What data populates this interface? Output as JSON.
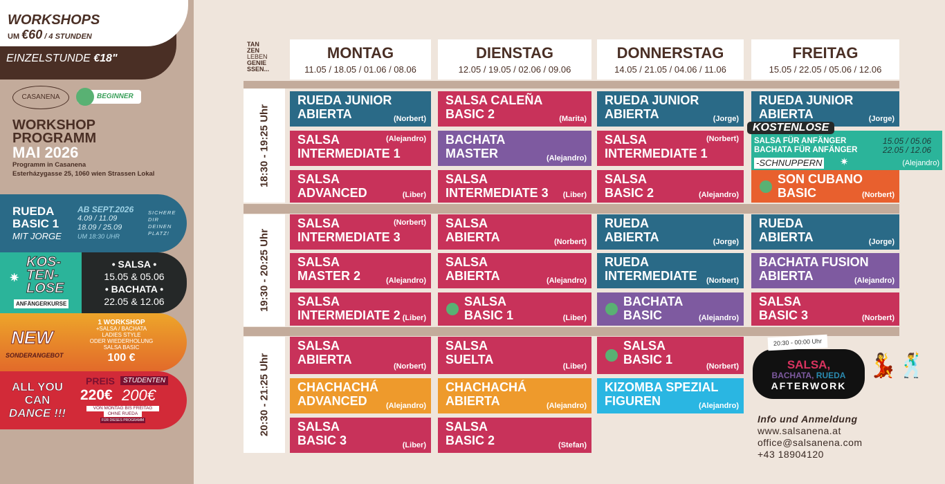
{
  "colors": {
    "blue": "#2a6a87",
    "crimson": "#c8325a",
    "purple": "#7e5aa0",
    "orange": "#ee9a2c",
    "cyan": "#2ab6e2",
    "red_orange": "#e8602e",
    "green_teal": "#2bb49a",
    "brown": "#4a2f25",
    "beginner_green": "#59b173"
  },
  "left": {
    "workshops": "WORKSHOPS",
    "um": "UM",
    "price": "€60",
    "per": "/ 4 STUNDEN",
    "einzel": "EINZELSTUNDE",
    "einzel_price": "€18\"",
    "logo": "CASANENA",
    "beginner": "BEGINNER",
    "prog1": "WORKSHOP",
    "prog2": "PROGRAMM",
    "prog3": "MAI 2026",
    "addr1": "Programm in Casanena",
    "addr2": "Esterházygasse 25, 1060 wien Strassen Lokal",
    "rueda": {
      "l1": "RUEDA",
      "l2": "BASIC 1",
      "l3": "MIT JORGE",
      "ab": "AB SEPT.2026",
      "d1": "4.09 / 11.09",
      "d2": "18.09 / 25.09",
      "time": "UM 18:30 UHR",
      "cta1": "SICHERE",
      "cta2": "DIR",
      "cta3": "DEINEN",
      "cta4": "PLATZ!"
    },
    "kost": {
      "k1": "KOS-",
      "k2": "TEN-",
      "k3": "LOSE",
      "sub": "ANFÄNGERKURSE",
      "s1": "• SALSA •",
      "s2": "15.05 & 05.06",
      "s3": "• BACHATA •",
      "s4": "22.05 & 12.06"
    },
    "neww": {
      "new": "NEW",
      "sub": "SONDERANGEBOT",
      "w1": "1 WORKSHOP",
      "w2": "+SALSA / BACHATA",
      "w3": "LADIES STYLE",
      "w4": "ODER WIEDERHOLUNG",
      "w5": "SALSA BASIC",
      "price": "100 €"
    },
    "ayc": {
      "a1": "ALL YOU",
      "a2": "CAN",
      "a3": "DANCE !!!",
      "preis": "PREIS",
      "p1": "220€",
      "stud": "STUDENTEN",
      "p2": "200€",
      "n1": "VON MONTAG BIS FREITAG",
      "n2": "OHNE RUEDA",
      "n3": "FÜR DIESES PROGRAMM"
    }
  },
  "slogan": [
    "TAN",
    "ZEN",
    "LEBEN",
    "GENIE",
    "SSEN..."
  ],
  "days": [
    {
      "name": "MONTAG",
      "dates": "11.05 / 18.05 / 01.06 / 08.06"
    },
    {
      "name": "DIENSTAG",
      "dates": "12.05 / 19.05 / 02.06 / 09.06"
    },
    {
      "name": "DONNERSTAG",
      "dates": "14.05 / 21.05 / 04.06 / 11.06"
    },
    {
      "name": "FREITAG",
      "dates": "15.05 / 22.05 / 05.06 / 12.06"
    }
  ],
  "times": [
    "18:30 - 19:25 Uhr",
    "19:30 - 20:25 Uhr",
    "20:30 - 21:25 Uhr"
  ],
  "schedule": [
    [
      {
        "l1": "RUEDA JUNIOR",
        "l2": "ABIERTA",
        "teacher": "(Norbert)",
        "color": "blue"
      },
      {
        "l1": "SALSA",
        "l2": "INTERMEDIATE 1",
        "teacher": "(Alejandro)",
        "color": "crimson"
      },
      {
        "l1": "SALSA",
        "l2": "ADVANCED",
        "teacher": "(Liber)",
        "color": "crimson"
      },
      {
        "l1": "SALSA",
        "l2": "INTERMEDIATE 3",
        "teacher": "(Norbert)",
        "color": "crimson"
      },
      {
        "l1": "SALSA",
        "l2": "MASTER 2",
        "teacher": "(Alejandro)",
        "color": "crimson"
      },
      {
        "l1": "SALSA",
        "l2": "INTERMEDIATE 2",
        "teacher": "(Liber)",
        "color": "crimson"
      },
      {
        "l1": "SALSA",
        "l2": "ABIERTA",
        "teacher": "(Norbert)",
        "color": "crimson"
      },
      {
        "l1": "CHACHACHÁ",
        "l2": "ADVANCED",
        "teacher": "(Alejandro)",
        "color": "orange"
      },
      {
        "l1": "SALSA",
        "l2": "BASIC 3",
        "teacher": "(Liber)",
        "color": "crimson"
      }
    ],
    [
      {
        "l1": "SALSA CALEÑA",
        "l2": "BASIC 2",
        "teacher": "(Marita)",
        "color": "crimson"
      },
      {
        "l1": "BACHATA",
        "l2": "MASTER",
        "teacher": "(Alejandro)",
        "color": "purple"
      },
      {
        "l1": "SALSA",
        "l2": "INTERMEDIATE 3",
        "teacher": "(Liber)",
        "color": "crimson"
      },
      {
        "l1": "SALSA",
        "l2": "ABIERTA",
        "teacher": "(Norbert)",
        "color": "crimson"
      },
      {
        "l1": "SALSA",
        "l2": "ABIERTA",
        "teacher": "(Alejandro)",
        "color": "crimson"
      },
      {
        "l1": "SALSA",
        "l2": "BASIC 1",
        "teacher": "(Liber)",
        "color": "crimson",
        "beginner": true
      },
      {
        "l1": "SALSA",
        "l2": "SUELTA",
        "teacher": "(Liber)",
        "color": "crimson"
      },
      {
        "l1": "CHACHACHÁ",
        "l2": "ABIERTA",
        "teacher": "(Alejandro)",
        "color": "orange"
      },
      {
        "l1": "SALSA",
        "l2": "BASIC 2",
        "teacher": "(Stefan)",
        "color": "crimson"
      }
    ],
    [
      {
        "l1": "RUEDA JUNIOR",
        "l2": "ABIERTA",
        "teacher": "(Jorge)",
        "color": "blue"
      },
      {
        "l1": "SALSA",
        "l2": "INTERMEDIATE 1",
        "teacher": "(Norbert)",
        "color": "crimson"
      },
      {
        "l1": "SALSA",
        "l2": "BASIC 2",
        "teacher": "(Alejandro)",
        "color": "crimson"
      },
      {
        "l1": "RUEDA",
        "l2": "ABIERTA",
        "teacher": "(Jorge)",
        "color": "blue"
      },
      {
        "l1": "RUEDA",
        "l2": "INTERMEDIATE",
        "teacher": "(Norbert)",
        "color": "blue"
      },
      {
        "l1": "BACHATA",
        "l2": "BASIC",
        "teacher": "(Alejandro)",
        "color": "purple",
        "beginner": true
      },
      {
        "l1": "SALSA",
        "l2": "BASIC 1",
        "teacher": "(Norbert)",
        "color": "crimson",
        "beginner": true
      },
      {
        "l1": "KIZOMBA SPEZIAL",
        "l2": "FIGUREN",
        "teacher": "(Alejandro)",
        "color": "cyan"
      },
      null
    ],
    [
      {
        "l1": "RUEDA JUNIOR",
        "l2": "ABIERTA",
        "teacher": "(Jorge)",
        "color": "blue"
      },
      null,
      {
        "l1": "SON CUBANO",
        "l2": "BASIC",
        "teacher": "(Norbert)",
        "color": "red_orange",
        "beginner": true
      },
      {
        "l1": "RUEDA",
        "l2": "ABIERTA",
        "teacher": "(Jorge)",
        "color": "blue"
      },
      {
        "l1": "BACHATA FUSION",
        "l2": "ABIERTA",
        "teacher": "(Alejandro)",
        "color": "purple"
      },
      {
        "l1": "SALSA",
        "l2": "BASIC 3",
        "teacher": "(Norbert)",
        "color": "crimson"
      },
      null,
      null,
      null
    ]
  ],
  "free_trial": {
    "badge": "KOSTENLOSE",
    "l1": "SALSA FÜR ANFÄNGER",
    "l2": "BACHATA FÜR ANFÄNGER",
    "d1": "15.05 / 05.06",
    "d2": "22.05 / 12.06",
    "tag": "-SCHNUPPERN",
    "teacher": "(Alejandro)"
  },
  "afterwork": {
    "time": "20:30 - 00:00 Uhr",
    "l1": "SALSA,",
    "l2a": "BACHATA,",
    "l2b": "RUEDA",
    "l3": "AFTERWORK"
  },
  "contact": {
    "title": "Info und Anmeldung",
    "web": "www.salsanena.at",
    "mail": "office@salsanena.com",
    "phone": "+43 18904120"
  }
}
